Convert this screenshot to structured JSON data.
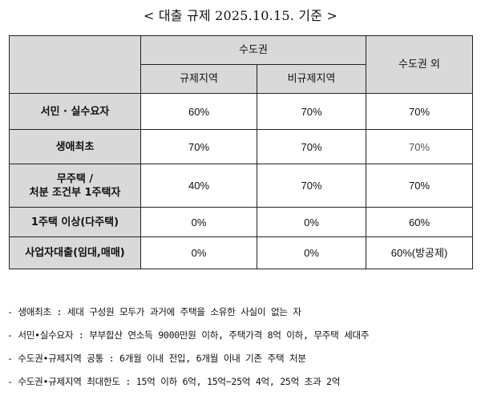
{
  "title": "< 대출 규제 2025.10.15. 기준 >",
  "header": {
    "capital_area": "수도권",
    "regulated": "규제지역",
    "non_regulated": "비규제지역",
    "outside_capital": "수도권 외"
  },
  "rows": [
    {
      "label_line1": "서민 · 실수요자",
      "label_line2": "",
      "regulated": "60%",
      "non_regulated": "70%",
      "outside": "70%"
    },
    {
      "label_line1": "생애최초",
      "label_line2": "",
      "regulated": "70%",
      "non_regulated": "70%",
      "outside": "70%"
    },
    {
      "label_line1": "무주택 /",
      "label_line2": "처분 조건부 1주택자",
      "regulated": "40%",
      "non_regulated": "70%",
      "outside": "70%"
    },
    {
      "label_line1": "1주택 이상(다주택)",
      "label_line2": "",
      "regulated": "0%",
      "non_regulated": "0%",
      "outside": "60%"
    },
    {
      "label_line1": "사업자대출(임대,매매)",
      "label_line2": "",
      "regulated": "0%",
      "non_regulated": "0%",
      "outside": "60%(방공제)"
    }
  ],
  "notes": [
    "- 생애최초 : 세대 구성원 모두가 과거에 주택을 소유한 사실이 없는 자",
    "- 서민•실수요자 : 부부합산 연소득 9000만원 이하, 주택가격 8억 이하,  무주택 세대주",
    "- 수도권•규제지역 공통 : 6개월 이내 전입, 6개월 이내 기존 주택 처분",
    "- 수도권•규제지역 최대한도 :  15억 이하 6억, 15억~25억 4억, 25억 초과 2억"
  ],
  "colors": {
    "header_shade": "#d9d9d9",
    "border": "#222222"
  }
}
